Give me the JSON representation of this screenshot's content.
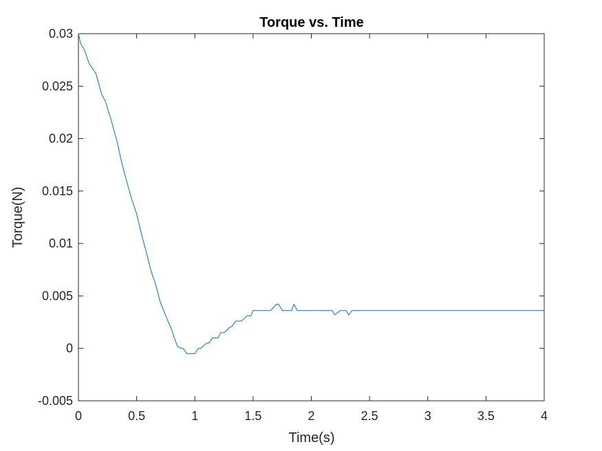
{
  "chart_data": {
    "type": "line",
    "title": "Torque vs. Time",
    "xlabel": "Time(s)",
    "ylabel": "Torque(N)",
    "xlim": [
      0,
      4
    ],
    "ylim": [
      -0.005,
      0.03
    ],
    "xticks": [
      "0",
      "0.5",
      "1",
      "1.5",
      "2",
      "2.5",
      "3",
      "3.5",
      "4"
    ],
    "yticks": [
      "-0.005",
      "0",
      "0.005",
      "0.01",
      "0.015",
      "0.02",
      "0.025",
      "0.03"
    ],
    "xtick_values": [
      0,
      0.5,
      1,
      1.5,
      2,
      2.5,
      3,
      3.5,
      4
    ],
    "ytick_values": [
      -0.005,
      0,
      0.005,
      0.01,
      0.015,
      0.02,
      0.025,
      0.03
    ],
    "grid": false,
    "series": [
      {
        "color": "#0072BD",
        "x": [
          0,
          0.02,
          0.05,
          0.09,
          0.15,
          0.2,
          0.23,
          0.28,
          0.33,
          0.37,
          0.4,
          0.45,
          0.5,
          0.55,
          0.58,
          0.62,
          0.66,
          0.7,
          0.75,
          0.8,
          0.82,
          0.85,
          0.88,
          0.9,
          0.93,
          0.97,
          1.0,
          1.03,
          1.05,
          1.1,
          1.12,
          1.15,
          1.2,
          1.22,
          1.25,
          1.3,
          1.32,
          1.35,
          1.4,
          1.45,
          1.48,
          1.5,
          1.52,
          1.55,
          1.58,
          1.6,
          1.65,
          1.7,
          1.72,
          1.75,
          1.78,
          1.8,
          1.83,
          1.85,
          1.88,
          1.92,
          2.0,
          2.1,
          2.15,
          2.18,
          2.2,
          2.25,
          2.28,
          2.3,
          2.32,
          2.35,
          2.5,
          3.0,
          3.5,
          4.0
        ],
        "y": [
          0.03,
          0.029,
          0.0285,
          0.0272,
          0.0262,
          0.0242,
          0.0236,
          0.0218,
          0.0198,
          0.0178,
          0.0165,
          0.0145,
          0.0128,
          0.0105,
          0.0093,
          0.0075,
          0.0062,
          0.0045,
          0.0031,
          0.0018,
          0.0011,
          0.0002,
          0.0,
          0.0,
          -0.0005,
          -0.0005,
          -0.0005,
          0.0,
          0.0,
          0.0005,
          0.0005,
          0.001,
          0.001,
          0.0015,
          0.0015,
          0.002,
          0.0021,
          0.0026,
          0.0026,
          0.0031,
          0.0031,
          0.0036,
          0.0036,
          0.0036,
          0.0036,
          0.0036,
          0.0036,
          0.0042,
          0.0042,
          0.0036,
          0.0036,
          0.0036,
          0.0036,
          0.0042,
          0.0036,
          0.0036,
          0.0036,
          0.0036,
          0.0036,
          0.0036,
          0.0032,
          0.0036,
          0.0036,
          0.0036,
          0.0032,
          0.0036,
          0.0036,
          0.0036,
          0.0036,
          0.0036
        ]
      }
    ]
  }
}
